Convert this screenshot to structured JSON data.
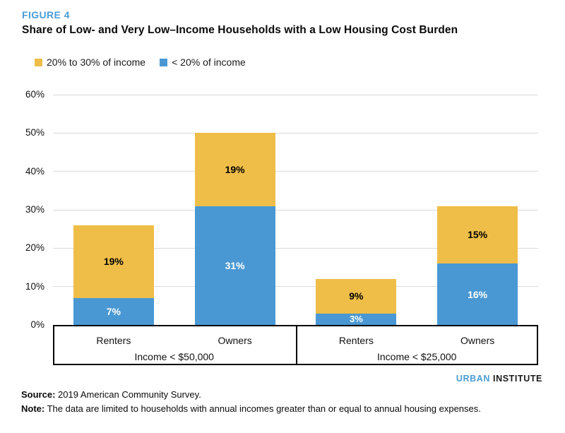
{
  "figure_label": "FIGURE 4",
  "title": "Share of Low- and Very Low–Income Households with a Low Housing Cost Burden",
  "legend": [
    {
      "label": "20% to 30% of income",
      "color": "#EFBE48",
      "swatch_name": "yellow-legend-swatch"
    },
    {
      "label": "< 20% of income",
      "color": "#4998D3",
      "swatch_name": "blue-legend-swatch"
    }
  ],
  "chart_data": {
    "type": "bar",
    "stacked": true,
    "categories": [
      "Renters",
      "Owners",
      "Renters",
      "Owners"
    ],
    "groups": [
      {
        "label": "Income < $50,000"
      },
      {
        "label": "Income < $25,000"
      }
    ],
    "series": [
      {
        "name": "< 20% of income",
        "color": "#4998D3",
        "label_color": "#ffffff",
        "values": [
          7,
          31,
          3,
          16
        ]
      },
      {
        "name": "20% to 30% of income",
        "color": "#EFBE48",
        "label_color": "#000000",
        "values": [
          19,
          19,
          9,
          15
        ]
      }
    ],
    "value_label_suffix": "%",
    "ylabel": "",
    "xlabel": "",
    "ylim": [
      0,
      60
    ],
    "ytick_step": 10,
    "ytick_labels": [
      "0%",
      "10%",
      "20%",
      "30%",
      "40%",
      "50%",
      "60%"
    ],
    "grid": true,
    "legend_position": "top-left"
  },
  "footer": {
    "logo_part1": "URBAN",
    "logo_part2": "INSTITUTE",
    "source_label": "Source:",
    "source_text": " 2019 American Community Survey.",
    "note_label": "Note:",
    "note_text": " The data are limited to households with annual incomes greater than or equal to annual housing expenses."
  },
  "colors": {
    "accent_blue": "#4A9CD5",
    "bar_blue": "#4998D3",
    "bar_yellow": "#EFBE48",
    "gridline": "#D9D9D9",
    "axis_box_border": "#000000",
    "text": "#1A1A1A"
  }
}
